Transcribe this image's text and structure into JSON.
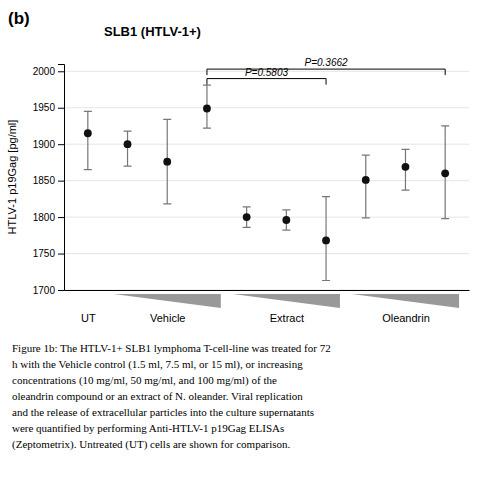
{
  "chart_data": {
    "type": "scatter",
    "title": "SLB1 (HTLV-1+)",
    "panel_label": "(b)",
    "ylabel": "HTLV-1 p19Gag [pg/ml]",
    "categories": [
      "UT",
      null,
      "Vehicle",
      null,
      null,
      "Extract",
      null,
      null,
      "Oleandrin",
      null
    ],
    "values": [
      1915,
      1900,
      1876,
      1949,
      1800,
      1796,
      1768,
      1851,
      1869,
      1860
    ],
    "error_low": [
      50,
      30,
      58,
      27,
      14,
      14,
      55,
      52,
      32,
      62
    ],
    "error_high": [
      30,
      18,
      58,
      32,
      14,
      14,
      60,
      34,
      24,
      65
    ],
    "color": "#111111",
    "marker": "circle",
    "ylim": [
      1700,
      2010
    ],
    "yticks": [
      1700,
      1750,
      1800,
      1850,
      1900,
      1950,
      2000
    ],
    "grid": true,
    "brackets": [
      {
        "from": 3,
        "to": 6,
        "y": 1990,
        "label": "P=0.5803"
      },
      {
        "from": 3,
        "to": 9,
        "y": 2003,
        "label": "P=0.3662"
      }
    ],
    "caption": "Figure 1b: The HTLV-1+ SLB1 lymphoma T-cell-line was treated for 72\nh with the Vehicle control (1.5 ml, 7.5 ml, or 15 ml), or increasing\nconcentrations (10 mg/ml, 50 mg/ml, and 100 mg/ml) of the\noleandrin compound or an extract of N. oleander. Viral replication\nand the release of extracellular particles into the culture supernatants\nwere quantified by performing Anti-HTLV-1 p19Gag ELISAs\n(Zeptometrix). Untreated (UT) cells are shown for comparison."
  }
}
